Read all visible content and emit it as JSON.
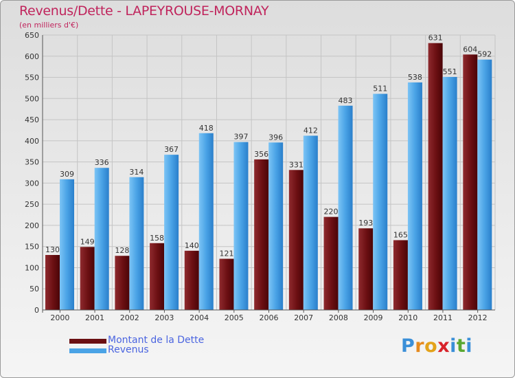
{
  "title": "Revenus/Dette - LAPEYROUSE-MORNAY",
  "subtitle": "(en milliers d'€)",
  "legend": [
    {
      "label": "Montant de la Dette",
      "color": "#6b0f12"
    },
    {
      "label": "Revenus",
      "color": "#4aa3e6"
    }
  ],
  "logo": {
    "text": "Proxiti",
    "letter_colors": [
      "#3a8fd8",
      "#e58a1f",
      "#e3a21a",
      "#d8232a",
      "#3a8fd8",
      "#5aa832",
      "#3a8fd8"
    ]
  },
  "chart_data": {
    "type": "bar",
    "categories": [
      "2000",
      "2001",
      "2002",
      "2003",
      "2004",
      "2005",
      "2006",
      "2007",
      "2008",
      "2009",
      "2010",
      "2011",
      "2012"
    ],
    "series": [
      {
        "name": "Montant de la Dette",
        "values": [
          130,
          149,
          128,
          158,
          140,
          121,
          356,
          331,
          220,
          193,
          165,
          631,
          604
        ]
      },
      {
        "name": "Revenus",
        "values": [
          309,
          336,
          314,
          367,
          418,
          397,
          396,
          412,
          483,
          511,
          538,
          551,
          592
        ]
      }
    ],
    "title": "Revenus/Dette - LAPEYROUSE-MORNAY",
    "ylabel": "(en milliers d'€)",
    "ylim": [
      0,
      650
    ],
    "yticks": [
      0,
      50,
      100,
      150,
      200,
      250,
      300,
      350,
      400,
      450,
      500,
      550,
      600,
      650
    ],
    "grid": true,
    "legend_position": "bottom-left"
  }
}
